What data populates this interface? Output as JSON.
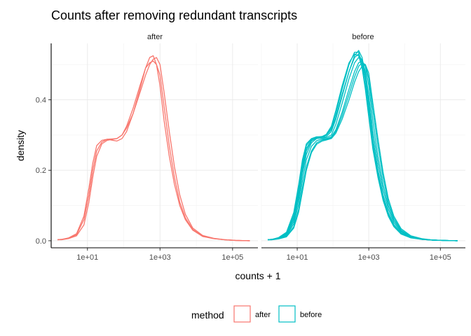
{
  "chart_data": {
    "type": "line",
    "title": "Counts after removing redundant transcripts",
    "xlabel": "counts + 1",
    "ylabel": "density",
    "x_scale": "log10",
    "xlim": [
      1,
      500000
    ],
    "ylim": [
      -0.02,
      0.56
    ],
    "x_ticks": [
      {
        "value": 10,
        "label": "1e+01"
      },
      {
        "value": 1000,
        "label": "1e+03"
      },
      {
        "value": 100000,
        "label": "1e+05"
      }
    ],
    "y_ticks": [
      {
        "value": 0.0,
        "label": "0.0"
      },
      {
        "value": 0.2,
        "label": "0.2"
      },
      {
        "value": 0.4,
        "label": "0.4"
      }
    ],
    "grid": true,
    "legend": {
      "title": "method",
      "position": "bottom",
      "entries": [
        {
          "label": "after",
          "color": "#F8766D"
        },
        {
          "label": "before",
          "color": "#00BFC4"
        }
      ]
    },
    "panels": [
      {
        "strip": "after",
        "color": "#F8766D",
        "series": [
          {
            "x": [
              1.5,
              2,
              3,
              5,
              8,
              11,
              14,
              18,
              25,
              35,
              50,
              65,
              90,
              120,
              180,
              280,
              400,
              520,
              650,
              800,
              1000,
              1300,
              1800,
              2500,
              3500,
              5000,
              8000,
              15000,
              30000,
              60000,
              120000,
              300000
            ],
            "y": [
              0.003,
              0.004,
              0.008,
              0.02,
              0.07,
              0.15,
              0.22,
              0.27,
              0.285,
              0.288,
              0.285,
              0.283,
              0.29,
              0.31,
              0.36,
              0.43,
              0.49,
              0.52,
              0.525,
              0.5,
              0.44,
              0.34,
              0.24,
              0.16,
              0.1,
              0.06,
              0.03,
              0.012,
              0.006,
              0.003,
              0.001,
              0
            ]
          },
          {
            "x": [
              1.5,
              2,
              3,
              5,
              8,
              11,
              14,
              18,
              25,
              35,
              50,
              65,
              90,
              120,
              180,
              280,
              400,
              520,
              650,
              800,
              1000,
              1300,
              1800,
              2500,
              3500,
              5000,
              8000,
              15000,
              30000,
              60000,
              120000,
              300000
            ],
            "y": [
              0.003,
              0.004,
              0.007,
              0.017,
              0.06,
              0.13,
              0.2,
              0.255,
              0.28,
              0.288,
              0.289,
              0.29,
              0.3,
              0.325,
              0.375,
              0.44,
              0.49,
              0.505,
              0.51,
              0.5,
              0.47,
              0.38,
              0.27,
              0.18,
              0.11,
              0.065,
              0.032,
              0.013,
              0.006,
              0.003,
              0.001,
              0
            ]
          },
          {
            "x": [
              1.5,
              2,
              3,
              5,
              8,
              11,
              14,
              18,
              25,
              35,
              50,
              65,
              90,
              120,
              180,
              280,
              400,
              520,
              650,
              800,
              1000,
              1300,
              1800,
              2500,
              3500,
              5000,
              8000,
              15000,
              30000,
              60000,
              120000,
              300000
            ],
            "y": [
              0.003,
              0.003,
              0.006,
              0.014,
              0.045,
              0.11,
              0.18,
              0.24,
              0.275,
              0.285,
              0.288,
              0.29,
              0.3,
              0.32,
              0.36,
              0.42,
              0.47,
              0.5,
              0.515,
              0.52,
              0.5,
              0.42,
              0.31,
              0.21,
              0.13,
              0.075,
              0.036,
              0.015,
              0.007,
              0.003,
              0.001,
              0
            ]
          }
        ]
      },
      {
        "strip": "before",
        "color": "#00BFC4",
        "series": [
          {
            "x": [
              1.5,
              2,
              3,
              5,
              8,
              11,
              14,
              18,
              25,
              35,
              50,
              65,
              90,
              120,
              180,
              280,
              400,
              520,
              650,
              800,
              1000,
              1300,
              1800,
              2500,
              3500,
              5000,
              8000,
              15000,
              30000,
              60000,
              120000,
              300000
            ],
            "y": [
              0.003,
              0.004,
              0.009,
              0.024,
              0.08,
              0.16,
              0.23,
              0.275,
              0.29,
              0.295,
              0.295,
              0.3,
              0.32,
              0.36,
              0.43,
              0.5,
              0.535,
              0.535,
              0.5,
              0.44,
              0.36,
              0.27,
              0.19,
              0.12,
              0.075,
              0.043,
              0.02,
              0.009,
              0.004,
              0.002,
              0.001,
              0
            ]
          },
          {
            "x": [
              1.5,
              2,
              3,
              5,
              8,
              11,
              14,
              18,
              25,
              35,
              50,
              65,
              90,
              120,
              180,
              280,
              400,
              520,
              650,
              800,
              1000,
              1300,
              1800,
              2500,
              3500,
              5000,
              8000,
              15000,
              30000,
              60000,
              120000,
              300000
            ],
            "y": [
              0.003,
              0.004,
              0.008,
              0.021,
              0.072,
              0.15,
              0.22,
              0.27,
              0.288,
              0.294,
              0.296,
              0.302,
              0.325,
              0.37,
              0.44,
              0.505,
              0.53,
              0.525,
              0.49,
              0.43,
              0.35,
              0.26,
              0.18,
              0.115,
              0.07,
              0.04,
              0.019,
              0.008,
              0.004,
              0.002,
              0.001,
              0
            ]
          },
          {
            "x": [
              1.5,
              2,
              3,
              5,
              8,
              11,
              14,
              18,
              25,
              35,
              50,
              65,
              90,
              120,
              180,
              280,
              400,
              520,
              650,
              800,
              1000,
              1300,
              1800,
              2500,
              3500,
              5000,
              8000,
              15000,
              30000,
              60000,
              120000,
              300000
            ],
            "y": [
              0.003,
              0.004,
              0.007,
              0.018,
              0.062,
              0.13,
              0.2,
              0.255,
              0.283,
              0.292,
              0.295,
              0.3,
              0.315,
              0.35,
              0.415,
              0.48,
              0.52,
              0.53,
              0.51,
              0.46,
              0.38,
              0.285,
              0.2,
              0.13,
              0.08,
              0.046,
              0.022,
              0.009,
              0.004,
              0.002,
              0.001,
              0
            ]
          },
          {
            "x": [
              1.5,
              2,
              3,
              5,
              8,
              11,
              14,
              18,
              25,
              35,
              50,
              65,
              90,
              120,
              180,
              280,
              400,
              520,
              650,
              800,
              1000,
              1300,
              1800,
              2500,
              3500,
              5000,
              8000,
              15000,
              30000,
              60000,
              120000,
              300000
            ],
            "y": [
              0.003,
              0.004,
              0.007,
              0.016,
              0.055,
              0.12,
              0.19,
              0.245,
              0.278,
              0.29,
              0.292,
              0.293,
              0.3,
              0.33,
              0.39,
              0.46,
              0.505,
              0.52,
              0.515,
              0.48,
              0.41,
              0.31,
              0.22,
              0.145,
              0.09,
              0.052,
              0.025,
              0.01,
              0.005,
              0.002,
              0.001,
              0
            ]
          },
          {
            "x": [
              1.5,
              2,
              3,
              5,
              8,
              11,
              14,
              18,
              25,
              35,
              50,
              65,
              90,
              120,
              180,
              280,
              400,
              520,
              650,
              800,
              1000,
              1300,
              1800,
              2500,
              3500,
              5000,
              8000,
              15000,
              30000,
              60000,
              120000,
              300000
            ],
            "y": [
              0.003,
              0.003,
              0.006,
              0.014,
              0.048,
              0.105,
              0.17,
              0.23,
              0.268,
              0.284,
              0.289,
              0.29,
              0.295,
              0.315,
              0.365,
              0.43,
              0.48,
              0.505,
              0.51,
              0.495,
              0.44,
              0.34,
              0.24,
              0.16,
              0.1,
              0.058,
              0.028,
              0.011,
              0.005,
              0.002,
              0.001,
              0
            ]
          },
          {
            "x": [
              1.5,
              2,
              3,
              5,
              8,
              11,
              14,
              18,
              25,
              35,
              50,
              65,
              90,
              120,
              180,
              280,
              400,
              520,
              650,
              800,
              1000,
              1300,
              1800,
              2500,
              3500,
              5000,
              8000,
              15000,
              30000,
              60000,
              120000,
              300000
            ],
            "y": [
              0.003,
              0.003,
              0.006,
              0.012,
              0.04,
              0.09,
              0.15,
              0.21,
              0.255,
              0.278,
              0.286,
              0.288,
              0.292,
              0.31,
              0.355,
              0.415,
              0.465,
              0.495,
              0.505,
              0.5,
              0.46,
              0.37,
              0.27,
              0.18,
              0.11,
              0.064,
              0.03,
              0.012,
              0.005,
              0.002,
              0.001,
              0
            ]
          },
          {
            "x": [
              1.5,
              2,
              3,
              5,
              8,
              11,
              14,
              18,
              25,
              35,
              50,
              65,
              90,
              120,
              180,
              280,
              400,
              520,
              650,
              800,
              1000,
              1300,
              1800,
              2500,
              3500,
              5000,
              8000,
              15000,
              30000,
              60000,
              120000,
              300000
            ],
            "y": [
              0.003,
              0.003,
              0.005,
              0.011,
              0.036,
              0.082,
              0.14,
              0.2,
              0.25,
              0.274,
              0.283,
              0.286,
              0.29,
              0.305,
              0.345,
              0.4,
              0.45,
              0.48,
              0.495,
              0.5,
              0.475,
              0.39,
              0.29,
              0.195,
              0.12,
              0.07,
              0.034,
              0.014,
              0.006,
              0.002,
              0.001,
              0
            ]
          },
          {
            "x": [
              1.5,
              2,
              3,
              5,
              8,
              11,
              14,
              18,
              25,
              35,
              50,
              65,
              90,
              120,
              180,
              280,
              400,
              520,
              650,
              800,
              1000,
              1300,
              1800,
              2500,
              3500,
              5000,
              8000,
              15000,
              30000,
              60000,
              120000,
              300000
            ],
            "y": [
              0.003,
              0.004,
              0.008,
              0.02,
              0.068,
              0.14,
              0.21,
              0.262,
              0.285,
              0.292,
              0.294,
              0.296,
              0.31,
              0.345,
              0.41,
              0.48,
              0.525,
              0.54,
              0.52,
              0.47,
              0.39,
              0.29,
              0.2,
              0.128,
              0.078,
              0.044,
              0.021,
              0.009,
              0.004,
              0.002,
              0.001,
              0
            ]
          }
        ]
      }
    ]
  }
}
